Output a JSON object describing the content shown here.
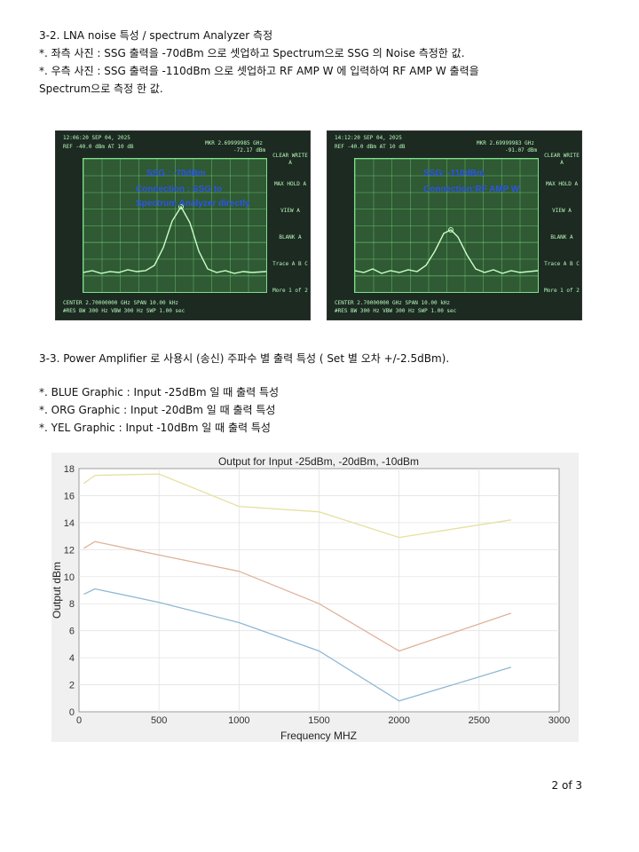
{
  "heading_1": "3-2. LNA noise 특성 / spectrum Analyzer 측정",
  "note_1": "*. 좌측 사진 : SSG 출력을 -70dBm 으로 셋업하고 Spectrum으로 SSG 의 Noise 측정한 값.",
  "note_2": "*. 우측 사진 : SSG 출력을 -110dBm 으로 셋업하고 RF AMP W 에 입력하여 RF AMP W 출력을",
  "note_2b": "Spectrum으로 측정 한 값.",
  "photo_left": {
    "top": "12:06:20 SEP 04, 2025",
    "ref": "REF -40.0 dBm    AT 10 dB",
    "mkr": "MKR 2.69999985 GHz",
    "mkr_val": "-72.17 dBm",
    "ann_1": "SSG : -70dBm",
    "ann_2": "Connection : SSG to",
    "ann_3": "Spectrum Analyzer directly",
    "bottom_1": "CENTER 2.70000000 GHz              SPAN 10.00 kHz",
    "bottom_2": "#RES BW 300 Hz          VBW 300 Hz       SWP 1.00 sec",
    "side": [
      "CLEAR WRITE A",
      "MAX HOLD A",
      "VIEW A",
      "BLANK A",
      "Trace A B C",
      "More 1 of 2"
    ]
  },
  "photo_right": {
    "top": "14:12:20 SEP 04, 2025",
    "ref": "REF -40.0 dBm    AT 10 dB",
    "mkr": "MKR 2.69999983 GHz",
    "mkr_val": "-91.07 dBm",
    "ann_1": "SSG: -110dBm",
    "ann_2": "Connection:RF AMP W",
    "bottom_1": "CENTER 2.70000000 GHz              SPAN 10.00 kHz",
    "bottom_2": "#RES BW 300 Hz          VBW 300 Hz       SWP 1.00 sec",
    "side": [
      "CLEAR WRITE A",
      "MAX HOLD A",
      "VIEW A",
      "BLANK A",
      "Trace A B C",
      "More 1 of 2"
    ]
  },
  "heading_2": "3-3. Power Amplifier 로 사용시 (송신) 주파수 별 출력 특성 ( Set 별 오차 +/-2.5dBm).",
  "note_3": "*. BLUE Graphic : Input -25dBm 일 때 출력 특성",
  "note_4": "*. ORG Graphic : Input -20dBm 일 때 출력 특성",
  "note_5": "*. YEL Graphic : Input -10dBm 일 때 출력 특성",
  "chart_data": {
    "type": "line",
    "title": "Output for Input -25dBm, -20dBm, -10dBm",
    "xlabel": "Frequency MHZ",
    "ylabel": "Output dBm",
    "xlim": [
      0,
      3000
    ],
    "ylim": [
      0,
      18
    ],
    "xticks": [
      0,
      500,
      1000,
      1500,
      2000,
      2500,
      3000
    ],
    "yticks": [
      0,
      2,
      4,
      6,
      8,
      10,
      12,
      14,
      16,
      18
    ],
    "grid": true,
    "series": [
      {
        "color": "#8fb8d4",
        "x": [
          30,
          100,
          500,
          1000,
          1500,
          2000,
          2700
        ],
        "y": [
          8.7,
          9.1,
          8.1,
          6.6,
          4.5,
          0.8,
          3.3
        ]
      },
      {
        "color": "#e0b29a",
        "x": [
          30,
          100,
          500,
          1000,
          1500,
          2000,
          2700
        ],
        "y": [
          12.1,
          12.6,
          11.6,
          10.4,
          8.0,
          4.5,
          7.3
        ]
      },
      {
        "color": "#e6e0a0",
        "x": [
          30,
          100,
          500,
          1000,
          1500,
          2000,
          2700
        ],
        "y": [
          16.9,
          17.5,
          17.6,
          15.2,
          14.8,
          12.9,
          14.2
        ]
      }
    ]
  },
  "page_number": "2 of 3"
}
